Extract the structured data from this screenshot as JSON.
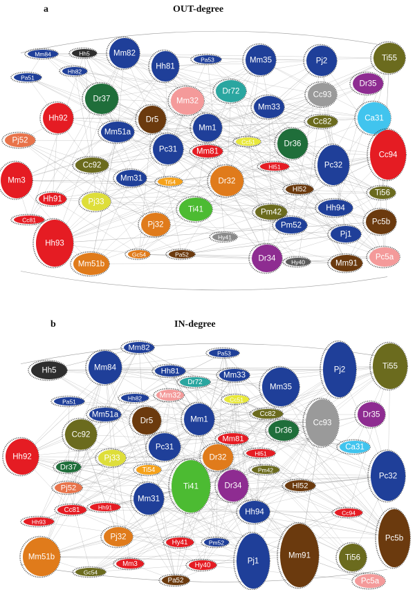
{
  "panel_a": {
    "letter": "a",
    "title": "OUT-degree",
    "colors": {
      "edge": "#9a9a9a",
      "arrow": "#333333"
    },
    "nodes": [
      {
        "label": "Mm84",
        "color": "#1f3f99"
      },
      {
        "label": "Hh5",
        "color": "#2e2e2e"
      },
      {
        "label": "Mm82",
        "color": "#1f3f99"
      },
      {
        "label": "Hh82",
        "color": "#1f3f99"
      },
      {
        "label": "Pa51",
        "color": "#1f3f99"
      },
      {
        "label": "Hh81",
        "color": "#1f3f99"
      },
      {
        "label": "Pa53",
        "color": "#1f3f99"
      },
      {
        "label": "Mm35",
        "color": "#1f3f99"
      },
      {
        "label": "Pj2",
        "color": "#1f3f99"
      },
      {
        "label": "Ti55",
        "color": "#6b6b1e"
      },
      {
        "label": "Dr35",
        "color": "#8e2c91"
      },
      {
        "label": "Dr37",
        "color": "#1f6e3a"
      },
      {
        "label": "Mm32",
        "color": "#f49a9a"
      },
      {
        "label": "Dr72",
        "color": "#2aa6a0"
      },
      {
        "label": "Cc93",
        "color": "#9a9a9a"
      },
      {
        "label": "Mm33",
        "color": "#1f3f99"
      },
      {
        "label": "Hh92",
        "color": "#e51c23"
      },
      {
        "label": "Dr5",
        "color": "#6b3a0e"
      },
      {
        "label": "Mm1",
        "color": "#1f3f99"
      },
      {
        "label": "Cc82",
        "color": "#6b6b1e"
      },
      {
        "label": "Ca31",
        "color": "#41c4ee"
      },
      {
        "label": "Pj52",
        "color": "#e8734a"
      },
      {
        "label": "Mm51a",
        "color": "#1f3f99"
      },
      {
        "label": "Pc31",
        "color": "#1f3f99"
      },
      {
        "label": "Cc51",
        "color": "#e8e83a"
      },
      {
        "label": "Dr36",
        "color": "#1f6e3a"
      },
      {
        "label": "Cc94",
        "color": "#e51c23"
      },
      {
        "label": "Mm81",
        "color": "#e51c23"
      },
      {
        "label": "Pc32",
        "color": "#1f3f99"
      },
      {
        "label": "Cc92",
        "color": "#6b6b1e"
      },
      {
        "label": "Hl51",
        "color": "#e51c23"
      },
      {
        "label": "Mm3",
        "color": "#e51c23"
      },
      {
        "label": "Mm31",
        "color": "#1f3f99"
      },
      {
        "label": "Ti54",
        "color": "#f5a21b"
      },
      {
        "label": "Dr32",
        "color": "#e07b1b"
      },
      {
        "label": "Hl52",
        "color": "#6b3a0e"
      },
      {
        "label": "Ti56",
        "color": "#6b6b1e"
      },
      {
        "label": "Hh91",
        "color": "#e51c23"
      },
      {
        "label": "Pj33",
        "color": "#dede3a"
      },
      {
        "label": "Ti41",
        "color": "#4cbb32"
      },
      {
        "label": "Pm42",
        "color": "#6b6b1e"
      },
      {
        "label": "Hh94",
        "color": "#1f3f99"
      },
      {
        "label": "Cc81",
        "color": "#e51c23"
      },
      {
        "label": "Pj32",
        "color": "#e07b1b"
      },
      {
        "label": "Pm52",
        "color": "#1f3f99"
      },
      {
        "label": "Pc5b",
        "color": "#6b3a0e"
      },
      {
        "label": "Hy41",
        "color": "#8a8a8a"
      },
      {
        "label": "Pj1",
        "color": "#1f3f99"
      },
      {
        "label": "Hh93",
        "color": "#e51c23"
      },
      {
        "label": "Gc54",
        "color": "#e07b1b"
      },
      {
        "label": "Pa52",
        "color": "#6b3a0e"
      },
      {
        "label": "Dr34",
        "color": "#8e2c91"
      },
      {
        "label": "Hy40",
        "color": "#5a5a5a"
      },
      {
        "label": "Mm91",
        "color": "#6b3a0e"
      },
      {
        "label": "Pc5a",
        "color": "#f49a9a"
      },
      {
        "label": "Mm51b",
        "color": "#e07b1b"
      }
    ]
  },
  "panel_b": {
    "letter": "b",
    "title": "IN-degree",
    "colors": {
      "edge": "#9a9a9a",
      "arrow": "#333333"
    },
    "nodes": [
      {
        "label": "Hh5",
        "color": "#2e2e2e"
      },
      {
        "label": "Mm84",
        "color": "#1f3f99"
      },
      {
        "label": "Mm82",
        "color": "#1f3f99"
      },
      {
        "label": "Pa53",
        "color": "#1f3f99"
      },
      {
        "label": "Pj2",
        "color": "#1f3f99"
      },
      {
        "label": "Ti55",
        "color": "#6b6b1e"
      },
      {
        "label": "Hh81",
        "color": "#1f3f99"
      },
      {
        "label": "Dr72",
        "color": "#2aa6a0"
      },
      {
        "label": "Mm33",
        "color": "#1f3f99"
      },
      {
        "label": "Mm35",
        "color": "#1f3f99"
      },
      {
        "label": "Pa51",
        "color": "#1f3f99"
      },
      {
        "label": "Hh82",
        "color": "#1f3f99"
      },
      {
        "label": "Mm32",
        "color": "#f49a9a"
      },
      {
        "label": "Cc51",
        "color": "#e8e83a"
      },
      {
        "label": "Cc82",
        "color": "#6b6b1e"
      },
      {
        "label": "Cc93",
        "color": "#9a9a9a"
      },
      {
        "label": "Dr35",
        "color": "#8e2c91"
      },
      {
        "label": "Mm51a",
        "color": "#1f3f99"
      },
      {
        "label": "Dr5",
        "color": "#6b3a0e"
      },
      {
        "label": "Mm1",
        "color": "#1f3f99"
      },
      {
        "label": "Dr36",
        "color": "#1f6e3a"
      },
      {
        "label": "Cc92",
        "color": "#6b6b1e"
      },
      {
        "label": "Hh92",
        "color": "#e51c23"
      },
      {
        "label": "Mm81",
        "color": "#e51c23"
      },
      {
        "label": "Ca31",
        "color": "#41c4ee"
      },
      {
        "label": "Pc31",
        "color": "#1f3f99"
      },
      {
        "label": "Hl51",
        "color": "#e51c23"
      },
      {
        "label": "Dr37",
        "color": "#1f6e3a"
      },
      {
        "label": "Pj33",
        "color": "#dede3a"
      },
      {
        "label": "Dr32",
        "color": "#e07b1b"
      },
      {
        "label": "Pc32",
        "color": "#1f3f99"
      },
      {
        "label": "Ti54",
        "color": "#f5a21b"
      },
      {
        "label": "Pm42",
        "color": "#6b6b1e"
      },
      {
        "label": "Ti41",
        "color": "#4cbb32"
      },
      {
        "label": "Dr34",
        "color": "#8e2c91"
      },
      {
        "label": "Hl52",
        "color": "#6b3a0e"
      },
      {
        "label": "Pj52",
        "color": "#e8734a"
      },
      {
        "label": "Mm31",
        "color": "#1f3f99"
      },
      {
        "label": "Cc81",
        "color": "#e51c23"
      },
      {
        "label": "Hh91",
        "color": "#e51c23"
      },
      {
        "label": "Hh94",
        "color": "#1f3f99"
      },
      {
        "label": "Cc94",
        "color": "#e51c23"
      },
      {
        "label": "Hh93",
        "color": "#e51c23"
      },
      {
        "label": "Pj32",
        "color": "#e07b1b"
      },
      {
        "label": "Pc5b",
        "color": "#6b3a0e"
      },
      {
        "label": "Mm91",
        "color": "#6b3a0e"
      },
      {
        "label": "Ti56",
        "color": "#6b6b1e"
      },
      {
        "label": "Pj1",
        "color": "#1f3f99"
      },
      {
        "label": "Hy41",
        "color": "#e51c23"
      },
      {
        "label": "Pm52",
        "color": "#1f3f99"
      },
      {
        "label": "Mm51b",
        "color": "#e07b1b"
      },
      {
        "label": "Gc54",
        "color": "#6b6b1e"
      },
      {
        "label": "Mm3",
        "color": "#e51c23"
      },
      {
        "label": "Hy40",
        "color": "#e51c23"
      },
      {
        "label": "Pa52",
        "color": "#6b3a0e"
      },
      {
        "label": "Pc5a",
        "color": "#f49a9a"
      }
    ]
  }
}
